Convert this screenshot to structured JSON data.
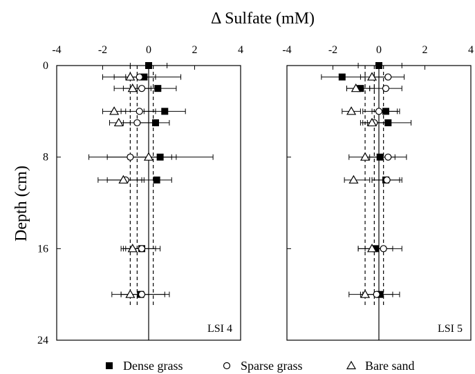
{
  "chart_data": {
    "type": "scatter",
    "title": "Δ Sulfate (mM)",
    "xlabel": "Δ Sulfate (mM)",
    "ylabel": "Depth (cm)",
    "xlim": [
      -4,
      4
    ],
    "ylim": [
      24,
      0
    ],
    "xticks": [
      -4,
      -2,
      0,
      2,
      4
    ],
    "yticks": [
      0,
      8,
      16,
      24
    ],
    "legend_position": "bottom",
    "legend": [
      {
        "name": "Dense grass",
        "marker": "filled-square"
      },
      {
        "name": "Sparse grass",
        "marker": "open-circle"
      },
      {
        "name": "Bare sand",
        "marker": "open-triangle"
      }
    ],
    "panels": [
      {
        "label": "LSI 4",
        "mean_lines": {
          "dense": 0.2,
          "sparse": -0.5,
          "bare": -0.8
        },
        "series": [
          {
            "name": "Dense grass",
            "points": [
              {
                "depth": 0,
                "value": 0.0,
                "lo": -0.8,
                "hi": 0.8
              },
              {
                "depth": 1,
                "value": -0.2,
                "lo": -2.0,
                "hi": 1.4
              },
              {
                "depth": 2,
                "value": 0.4,
                "lo": -0.5,
                "hi": 1.2
              },
              {
                "depth": 4,
                "value": 0.7,
                "lo": -0.2,
                "hi": 1.6
              },
              {
                "depth": 5,
                "value": 0.3,
                "lo": -0.5,
                "hi": 0.9
              },
              {
                "depth": 8,
                "value": 0.5,
                "lo": -1.8,
                "hi": 2.8
              },
              {
                "depth": 10,
                "value": 0.35,
                "lo": -0.5,
                "hi": 1.0
              },
              {
                "depth": 16,
                "value": -0.3,
                "lo": -1.1,
                "hi": 0.5
              },
              {
                "depth": 20,
                "value": -0.35,
                "lo": -1.2,
                "hi": 0.7
              }
            ]
          },
          {
            "name": "Sparse grass",
            "points": [
              {
                "depth": 1,
                "value": -0.4,
                "lo": -1.0,
                "hi": 0.3
              },
              {
                "depth": 2,
                "value": -0.3,
                "lo": -1.1,
                "hi": 0.5
              },
              {
                "depth": 4,
                "value": -0.4,
                "lo": -1.2,
                "hi": 0.3
              },
              {
                "depth": 5,
                "value": -0.5,
                "lo": -1.1,
                "hi": 0.2
              },
              {
                "depth": 8,
                "value": -0.8,
                "lo": -2.6,
                "hi": 1.0
              },
              {
                "depth": 10,
                "value": -1.0,
                "lo": -1.8,
                "hi": -0.3
              },
              {
                "depth": 16,
                "value": -0.3,
                "lo": -1.0,
                "hi": 0.3
              },
              {
                "depth": 20,
                "value": -0.3,
                "lo": -1.2,
                "hi": 0.9
              }
            ]
          },
          {
            "name": "Bare sand",
            "points": [
              {
                "depth": 1,
                "value": -0.8,
                "lo": -1.5,
                "hi": 0.0
              },
              {
                "depth": 2,
                "value": -0.7,
                "lo": -1.5,
                "hi": 0.1
              },
              {
                "depth": 4,
                "value": -1.5,
                "lo": -2.0,
                "hi": -1.0
              },
              {
                "depth": 5,
                "value": -1.3,
                "lo": -1.7,
                "hi": -0.8
              },
              {
                "depth": 8,
                "value": 0.0,
                "lo": -0.9,
                "hi": 1.2
              },
              {
                "depth": 10,
                "value": -1.1,
                "lo": -2.2,
                "hi": -0.2
              },
              {
                "depth": 16,
                "value": -0.7,
                "lo": -1.2,
                "hi": 0.0
              },
              {
                "depth": 20,
                "value": -0.8,
                "lo": -1.6,
                "hi": 0.0
              }
            ]
          }
        ]
      },
      {
        "label": "LSI 5",
        "mean_lines": {
          "dense": 0.2,
          "sparse": -0.2,
          "bare": -0.6
        },
        "series": [
          {
            "name": "Dense grass",
            "points": [
              {
                "depth": 0,
                "value": 0.0,
                "lo": -0.9,
                "hi": 1.0
              },
              {
                "depth": 1,
                "value": -1.6,
                "lo": -2.5,
                "hi": -0.6
              },
              {
                "depth": 2,
                "value": -0.8,
                "lo": -1.4,
                "hi": -0.2
              },
              {
                "depth": 4,
                "value": 0.3,
                "lo": -0.3,
                "hi": 0.9
              },
              {
                "depth": 5,
                "value": 0.4,
                "lo": -0.5,
                "hi": 1.4
              },
              {
                "depth": 8,
                "value": 0.05,
                "lo": -0.6,
                "hi": 0.7
              },
              {
                "depth": 10,
                "value": 0.3,
                "lo": -0.3,
                "hi": 0.9
              },
              {
                "depth": 16,
                "value": -0.15,
                "lo": -0.9,
                "hi": 0.6
              },
              {
                "depth": 20,
                "value": 0.05,
                "lo": -0.7,
                "hi": 0.9
              }
            ]
          },
          {
            "name": "Sparse grass",
            "points": [
              {
                "depth": 1,
                "value": 0.4,
                "lo": -0.2,
                "hi": 1.1
              },
              {
                "depth": 2,
                "value": 0.3,
                "lo": -0.4,
                "hi": 1.0
              },
              {
                "depth": 4,
                "value": 0.0,
                "lo": -0.7,
                "hi": 0.8
              },
              {
                "depth": 5,
                "value": -0.2,
                "lo": -0.7,
                "hi": 0.3
              },
              {
                "depth": 8,
                "value": 0.4,
                "lo": -0.4,
                "hi": 1.2
              },
              {
                "depth": 10,
                "value": 0.35,
                "lo": -0.3,
                "hi": 1.0
              },
              {
                "depth": 16,
                "value": 0.2,
                "lo": -0.6,
                "hi": 1.0
              },
              {
                "depth": 20,
                "value": -0.1,
                "lo": -0.8,
                "hi": 0.6
              }
            ]
          },
          {
            "name": "Bare sand",
            "points": [
              {
                "depth": 1,
                "value": -0.3,
                "lo": -0.8,
                "hi": 0.3
              },
              {
                "depth": 2,
                "value": -1.0,
                "lo": -1.4,
                "hi": -0.4
              },
              {
                "depth": 4,
                "value": -1.2,
                "lo": -1.6,
                "hi": -0.8
              },
              {
                "depth": 5,
                "value": -0.3,
                "lo": -0.8,
                "hi": 0.3
              },
              {
                "depth": 8,
                "value": -0.6,
                "lo": -1.3,
                "hi": 0.1
              },
              {
                "depth": 10,
                "value": -1.1,
                "lo": -1.5,
                "hi": -0.4
              },
              {
                "depth": 16,
                "value": -0.3,
                "lo": -0.9,
                "hi": 0.3
              },
              {
                "depth": 20,
                "value": -0.6,
                "lo": -1.3,
                "hi": 0.1
              }
            ]
          }
        ]
      }
    ]
  }
}
